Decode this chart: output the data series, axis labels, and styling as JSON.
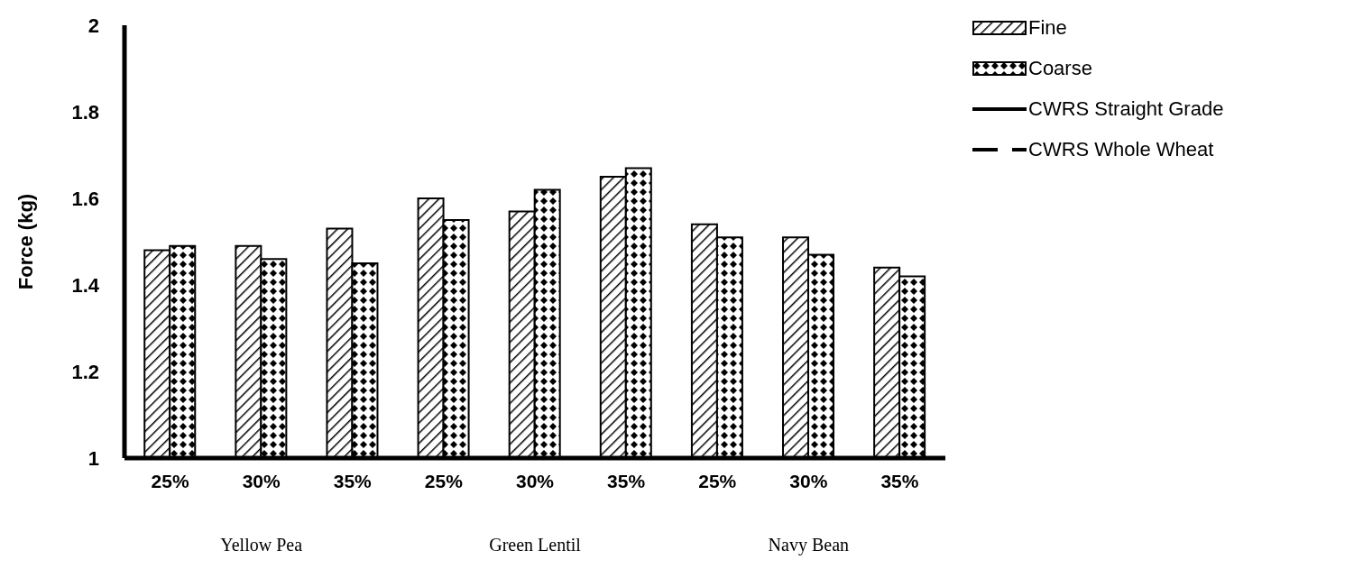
{
  "chart_data": {
    "type": "bar",
    "ylabel": "Force (kg)",
    "categories": [
      "25%",
      "30%",
      "35%",
      "25%",
      "30%",
      "35%",
      "25%",
      "30%",
      "35%"
    ],
    "series": [
      {
        "name": "Fine",
        "color": "#000000",
        "values": [
          1.48,
          1.49,
          1.53,
          1.6,
          1.57,
          1.65,
          1.54,
          1.51,
          1.44
        ]
      },
      {
        "name": "Coarse",
        "color": "#000000",
        "values": [
          1.49,
          1.46,
          1.45,
          1.55,
          1.62,
          1.67,
          1.51,
          1.47,
          1.42
        ]
      },
      {
        "name": "CWRS Straight Grade",
        "type": "line",
        "color": "#000000",
        "line_style": "solid",
        "values": [
          null,
          null,
          null,
          null,
          null,
          null,
          null,
          null,
          null
        ]
      },
      {
        "name": "CWRS Whole Wheat",
        "type": "line",
        "color": "#000000",
        "line_style": "dashed",
        "values": [
          null,
          null,
          null,
          null,
          null,
          null,
          null,
          null,
          null
        ]
      }
    ],
    "ylim": [
      1,
      2
    ],
    "yticks": [
      1,
      1.2,
      1.4,
      1.6,
      1.8,
      2
    ],
    "annotations": [
      "Yellow Pea",
      "Green Lentil",
      "Navy Bean"
    ],
    "legend": "top right",
    "grid": false
  }
}
